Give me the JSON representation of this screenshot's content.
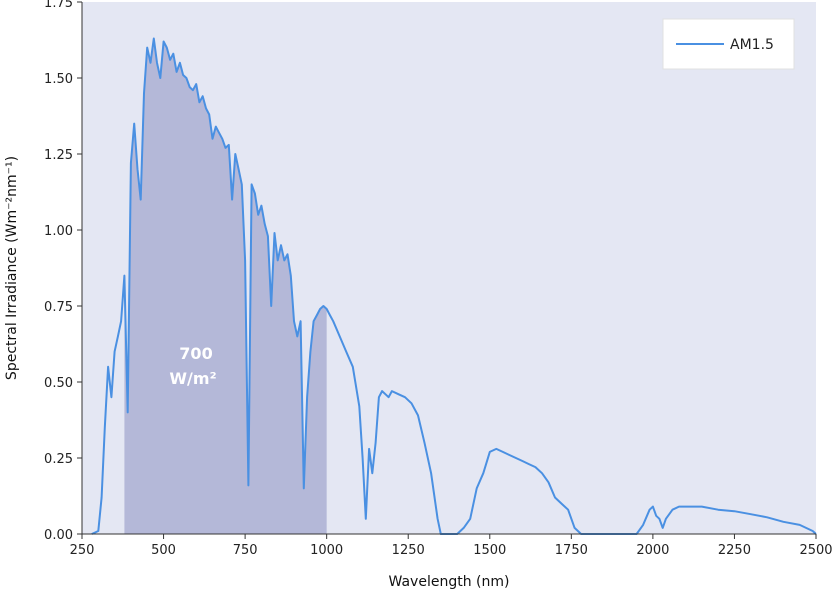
{
  "chart_data": {
    "type": "line",
    "xlabel": "Wavelength (nm)",
    "ylabel": "Spectral Irradiance (Wm⁻²nm⁻¹)",
    "xlim": [
      250,
      2500
    ],
    "ylim": [
      0,
      1.75
    ],
    "xticks": [
      "250",
      "500",
      "750",
      "1000",
      "1250",
      "1500",
      "1750",
      "2000",
      "2250",
      "2500"
    ],
    "yticks": [
      "0.00",
      "0.25",
      "0.50",
      "0.75",
      "1.00",
      "1.25",
      "1.50",
      "1.75"
    ],
    "grid": false,
    "legend_position": "top-right",
    "shaded_region": {
      "x_from": 380,
      "x_to": 1000,
      "label_value": "700",
      "label_unit": "W/m²"
    },
    "series": [
      {
        "name": "AM1.5",
        "color": "#4a90e2",
        "x": [
          280,
          300,
          310,
          320,
          330,
          340,
          350,
          360,
          370,
          380,
          390,
          400,
          410,
          420,
          430,
          440,
          450,
          460,
          470,
          480,
          490,
          500,
          510,
          520,
          530,
          540,
          550,
          560,
          570,
          580,
          590,
          600,
          610,
          620,
          630,
          640,
          650,
          660,
          670,
          680,
          690,
          700,
          710,
          720,
          730,
          740,
          750,
          760,
          770,
          780,
          790,
          800,
          810,
          820,
          830,
          840,
          850,
          860,
          870,
          880,
          890,
          900,
          910,
          920,
          930,
          940,
          950,
          960,
          970,
          980,
          990,
          1000,
          1010,
          1020,
          1040,
          1060,
          1080,
          1100,
          1110,
          1120,
          1130,
          1140,
          1150,
          1160,
          1170,
          1180,
          1190,
          1200,
          1220,
          1240,
          1260,
          1280,
          1300,
          1320,
          1340,
          1350,
          1360,
          1380,
          1400,
          1420,
          1440,
          1460,
          1480,
          1500,
          1520,
          1540,
          1560,
          1580,
          1600,
          1620,
          1640,
          1660,
          1680,
          1700,
          1720,
          1740,
          1760,
          1780,
          1800,
          1820,
          1850,
          1900,
          1950,
          1970,
          1990,
          2000,
          2010,
          2020,
          2030,
          2040,
          2060,
          2080,
          2100,
          2150,
          2200,
          2250,
          2300,
          2350,
          2400,
          2450,
          2490,
          2500
        ],
        "y": [
          0.0,
          0.01,
          0.12,
          0.35,
          0.55,
          0.45,
          0.6,
          0.65,
          0.7,
          0.85,
          0.4,
          1.22,
          1.35,
          1.2,
          1.1,
          1.45,
          1.6,
          1.55,
          1.63,
          1.55,
          1.5,
          1.62,
          1.6,
          1.56,
          1.58,
          1.52,
          1.55,
          1.51,
          1.5,
          1.47,
          1.46,
          1.48,
          1.42,
          1.44,
          1.4,
          1.38,
          1.3,
          1.34,
          1.32,
          1.3,
          1.27,
          1.28,
          1.1,
          1.25,
          1.2,
          1.15,
          0.9,
          0.16,
          1.15,
          1.12,
          1.05,
          1.08,
          1.02,
          0.98,
          0.75,
          0.99,
          0.9,
          0.95,
          0.9,
          0.92,
          0.85,
          0.7,
          0.65,
          0.7,
          0.15,
          0.45,
          0.6,
          0.7,
          0.72,
          0.74,
          0.75,
          0.74,
          0.72,
          0.7,
          0.65,
          0.6,
          0.55,
          0.42,
          0.25,
          0.05,
          0.28,
          0.2,
          0.3,
          0.45,
          0.47,
          0.46,
          0.45,
          0.47,
          0.46,
          0.45,
          0.43,
          0.39,
          0.3,
          0.2,
          0.05,
          0.0,
          0.0,
          0.0,
          0.0,
          0.02,
          0.05,
          0.15,
          0.2,
          0.27,
          0.28,
          0.27,
          0.26,
          0.25,
          0.24,
          0.23,
          0.22,
          0.2,
          0.17,
          0.12,
          0.1,
          0.08,
          0.02,
          0.0,
          0.0,
          0.0,
          0.0,
          0.0,
          0.0,
          0.03,
          0.08,
          0.09,
          0.06,
          0.05,
          0.02,
          0.05,
          0.08,
          0.09,
          0.09,
          0.09,
          0.08,
          0.075,
          0.065,
          0.055,
          0.04,
          0.03,
          0.01,
          0.0
        ]
      }
    ]
  }
}
